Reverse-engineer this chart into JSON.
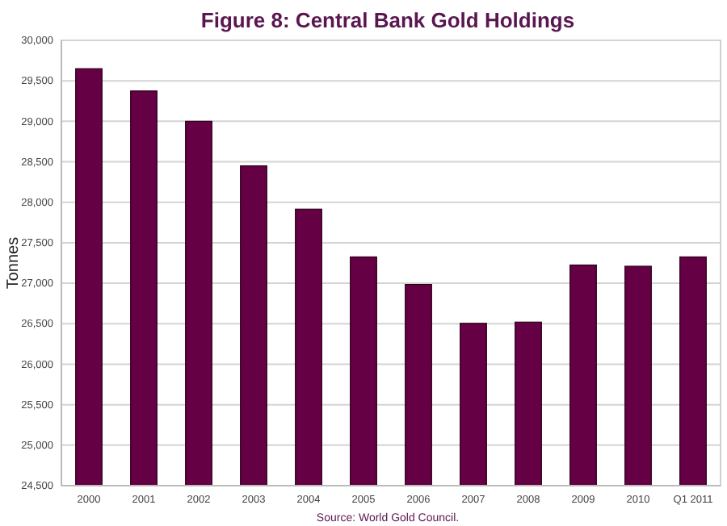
{
  "chart_data": {
    "type": "bar",
    "title": "Figure 8: Central Bank Gold Holdings",
    "ylabel": "Tonnes",
    "categories": [
      "2000",
      "2001",
      "2002",
      "2003",
      "2004",
      "2005",
      "2006",
      "2007",
      "2008",
      "2009",
      "2010",
      "Q1 2011"
    ],
    "values": [
      29650,
      29375,
      29000,
      28450,
      27915,
      27325,
      26985,
      26505,
      26520,
      27225,
      27210,
      27325
    ],
    "color": "#660044",
    "ylim": [
      24500,
      30000
    ],
    "yticks": [
      {
        "value": 24500,
        "label": "24,500"
      },
      {
        "value": 25000,
        "label": "25,000"
      },
      {
        "value": 25500,
        "label": "25,500"
      },
      {
        "value": 26000,
        "label": "26,000"
      },
      {
        "value": 26500,
        "label": "26,500"
      },
      {
        "value": 27000,
        "label": "27,000"
      },
      {
        "value": 27500,
        "label": "27,500"
      },
      {
        "value": 28000,
        "label": "28,000"
      },
      {
        "value": 28500,
        "label": "28,500"
      },
      {
        "value": 29000,
        "label": "29,000"
      },
      {
        "value": 29500,
        "label": "29,500"
      },
      {
        "value": 30000,
        "label": "30,000"
      }
    ],
    "grid": "y",
    "annotations": [
      "Source: World Gold Council."
    ]
  }
}
